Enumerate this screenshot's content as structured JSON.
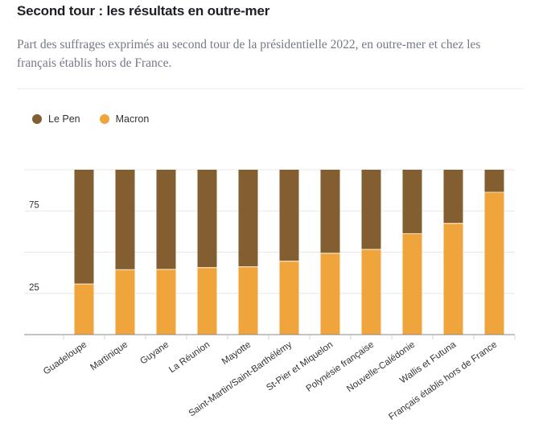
{
  "header": {
    "title": "Second tour : les résultats en outre-mer",
    "subtitle": "Part des suffrages exprimés au second tour de la présidentielle 2022, en outre-mer et chez les français établis hors de France."
  },
  "colors": {
    "le_pen": "#825e31",
    "macron": "#f0a43c",
    "grid": "#e8e8e8",
    "axis": "#8a8a8a",
    "tick": "#c9d3e3"
  },
  "chart_data": {
    "type": "bar",
    "stacked": true,
    "title": "Second tour : les résultats en outre-mer",
    "subtitle": "Part des suffrages exprimés au second tour de la présidentielle 2022, en outre-mer et chez les français établis hors de France.",
    "xlabel": "",
    "ylabel": "",
    "ylim": [
      0,
      100
    ],
    "yticks": [
      25,
      75
    ],
    "gridlines": [
      0,
      25,
      50,
      75,
      100
    ],
    "grid": true,
    "legend_position": "top-left",
    "categories": [
      "Guadeloupe",
      "Martinique",
      "Guyane",
      "La Réunion",
      "Mayotte",
      "Saint-Martin/Saint-Barthélémy",
      "St-Pier et Miquelon",
      "Polynésie française",
      "Nouvelle-Calédonie",
      "Wallis et Futuna",
      "Français établis hors de France"
    ],
    "series": [
      {
        "name": "Macron",
        "values": [
          30.4,
          39.1,
          39.3,
          40.4,
          40.9,
          44.3,
          49.1,
          51.4,
          61.0,
          67.2,
          86.1
        ]
      },
      {
        "name": "Le Pen",
        "values": [
          69.6,
          60.9,
          60.7,
          59.6,
          59.1,
          55.7,
          50.9,
          48.6,
          39.0,
          32.8,
          13.9
        ]
      }
    ]
  },
  "legend": [
    {
      "label": "Le Pen",
      "color": "#825e31"
    },
    {
      "label": "Macron",
      "color": "#f0a43c"
    }
  ]
}
